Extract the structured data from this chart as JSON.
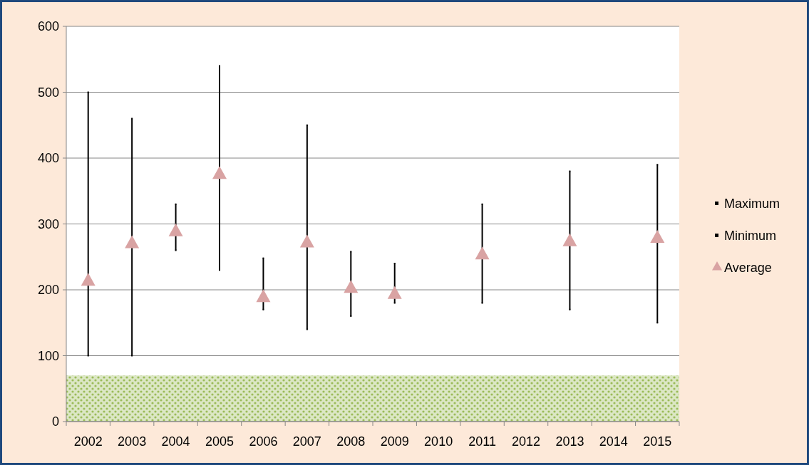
{
  "chart_data": {
    "type": "scatter",
    "categories": [
      "2002",
      "2003",
      "2004",
      "2005",
      "2006",
      "2007",
      "2008",
      "2009",
      "2010",
      "2011",
      "2012",
      "2013",
      "2014",
      "2015"
    ],
    "series": [
      {
        "name": "Maximum",
        "color": "#000000",
        "marker": "square",
        "values": [
          500,
          460,
          330,
          540,
          248,
          450,
          258,
          240,
          null,
          330,
          null,
          380,
          null,
          390
        ]
      },
      {
        "name": "Minimum",
        "color": "#000000",
        "marker": "square",
        "values": [
          100,
          100,
          260,
          230,
          170,
          140,
          160,
          180,
          null,
          180,
          null,
          170,
          null,
          150
        ]
      },
      {
        "name": "Average",
        "color": "#d9a3a3",
        "marker": "triangle",
        "values": [
          215,
          272,
          290,
          377,
          190,
          273,
          204,
          195,
          null,
          255,
          null,
          275,
          null,
          280
        ]
      }
    ],
    "ylim": [
      0,
      600
    ],
    "yticks": [
      0,
      100,
      200,
      300,
      400,
      500,
      600
    ],
    "grid": "y",
    "legend": "right",
    "bands": [
      {
        "axis": "y",
        "from": 0,
        "to": 70,
        "color": "#9bbb59"
      }
    ]
  }
}
